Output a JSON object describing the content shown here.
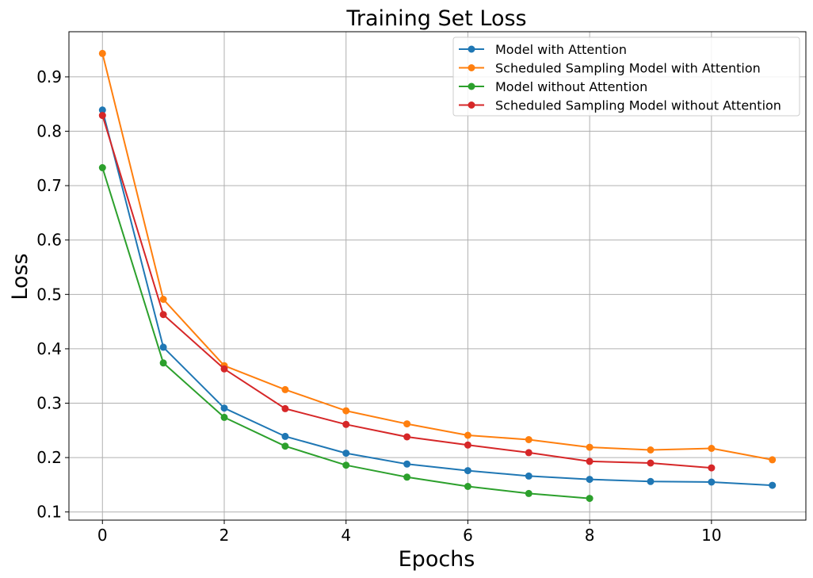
{
  "chart_data": {
    "type": "line",
    "title": "Training Set Loss",
    "xlabel": "Epochs",
    "ylabel": "Loss",
    "xlim": [
      -0.55,
      11.55
    ],
    "ylim": [
      0.085,
      0.983
    ],
    "xticks": [
      0,
      2,
      4,
      6,
      8,
      10
    ],
    "xtick_labels": [
      "0",
      "2",
      "4",
      "6",
      "8",
      "10"
    ],
    "yticks": [
      0.1,
      0.2,
      0.3,
      0.4,
      0.5,
      0.6,
      0.7,
      0.8,
      0.9
    ],
    "ytick_labels": [
      "0.1",
      "0.2",
      "0.3",
      "0.4",
      "0.5",
      "0.6",
      "0.7",
      "0.8",
      "0.9"
    ],
    "grid": true,
    "legend_position": "top-right",
    "series": [
      {
        "name": "Model with Attention",
        "color": "#1f77b4",
        "x": [
          0,
          1,
          2,
          3,
          4,
          5,
          6,
          7,
          8,
          9,
          10,
          11
        ],
        "values": [
          0.839,
          0.403,
          0.291,
          0.239,
          0.208,
          0.188,
          0.176,
          0.166,
          0.16,
          0.156,
          0.155,
          0.149
        ]
      },
      {
        "name": "Scheduled Sampling Model with Attention",
        "color": "#ff7f0e",
        "x": [
          0,
          1,
          2,
          3,
          4,
          5,
          6,
          7,
          8,
          9,
          10,
          11
        ],
        "values": [
          0.943,
          0.491,
          0.369,
          0.325,
          0.286,
          0.262,
          0.241,
          0.233,
          0.219,
          0.214,
          0.217,
          0.196
        ]
      },
      {
        "name": "Model without Attention",
        "color": "#2ca02c",
        "x": [
          0,
          1,
          2,
          3,
          4,
          5,
          6,
          7,
          8
        ],
        "values": [
          0.733,
          0.374,
          0.274,
          0.221,
          0.186,
          0.164,
          0.147,
          0.134,
          0.125
        ]
      },
      {
        "name": "Scheduled Sampling Model without Attention",
        "color": "#d62728",
        "x": [
          0,
          1,
          2,
          3,
          4,
          5,
          6,
          7,
          8,
          9,
          10
        ],
        "values": [
          0.829,
          0.463,
          0.363,
          0.29,
          0.261,
          0.238,
          0.223,
          0.209,
          0.193,
          0.19,
          0.181
        ]
      }
    ]
  }
}
